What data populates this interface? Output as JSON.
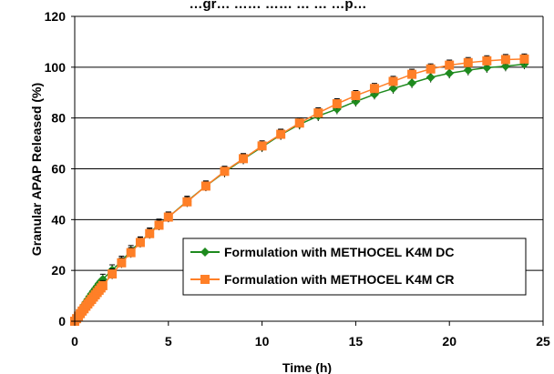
{
  "chart_data": {
    "type": "line",
    "title": "…gr… …… …… … … …p…",
    "xlabel": "Time (h)",
    "ylabel": "Granular APAP Released (%)",
    "xlim": [
      0,
      25
    ],
    "ylim": [
      0,
      120
    ],
    "xticks": [
      0,
      5,
      10,
      15,
      20,
      25
    ],
    "yticks": [
      0,
      20,
      40,
      60,
      80,
      100,
      120
    ],
    "grid": "horizontal",
    "legend_position": "bottom-right",
    "series": [
      {
        "name": "Formulation with METHOCEL K4M DC",
        "color": "#1e8a1e",
        "marker": "diamond",
        "x": [
          0,
          0.1,
          0.2,
          0.3,
          0.4,
          0.5,
          0.6,
          0.7,
          0.8,
          0.9,
          1.0,
          1.1,
          1.2,
          1.3,
          1.4,
          1.5,
          2,
          2.5,
          3,
          3.5,
          4,
          4.5,
          5,
          6,
          7,
          8,
          9,
          10,
          11,
          12,
          13,
          14,
          15,
          16,
          17,
          18,
          19,
          20,
          21,
          22,
          23,
          24
        ],
        "y": [
          0,
          1.5,
          2.8,
          4.0,
          5.2,
          6.3,
          7.5,
          8.6,
          9.7,
          10.8,
          11.8,
          12.8,
          13.8,
          14.8,
          15.7,
          16.5,
          20.2,
          23.6,
          27.8,
          31.2,
          34.7,
          38.2,
          41.0,
          47.2,
          53.2,
          58.7,
          63.8,
          68.6,
          73.4,
          77.5,
          80.8,
          83.5,
          86.5,
          89.3,
          91.6,
          93.8,
          96.0,
          97.6,
          98.8,
          99.8,
          100.4,
          101.2
        ],
        "error": 2
      },
      {
        "name": "Formulation with METHOCEL K4M CR",
        "color": "#ff7f27",
        "marker": "square",
        "x": [
          0,
          0.1,
          0.2,
          0.3,
          0.4,
          0.5,
          0.6,
          0.7,
          0.8,
          0.9,
          1.0,
          1.1,
          1.2,
          1.3,
          1.4,
          1.5,
          2,
          2.5,
          3,
          3.5,
          4,
          4.5,
          5,
          6,
          7,
          8,
          9,
          10,
          11,
          12,
          13,
          14,
          15,
          16,
          17,
          18,
          19,
          20,
          21,
          22,
          23,
          24
        ],
        "y": [
          0,
          1.0,
          2.0,
          3.0,
          4.0,
          4.9,
          5.9,
          6.8,
          7.7,
          8.6,
          9.5,
          10.4,
          11.3,
          12.2,
          13.1,
          14.0,
          18.6,
          23.0,
          27.0,
          31.0,
          34.5,
          37.8,
          41.0,
          47.0,
          53.2,
          59.0,
          64.0,
          69.0,
          73.6,
          78.0,
          82.0,
          85.6,
          88.8,
          91.6,
          94.4,
          97.2,
          99.3,
          100.8,
          101.8,
          102.5,
          103.0,
          103.2
        ],
        "error": 2
      }
    ]
  }
}
